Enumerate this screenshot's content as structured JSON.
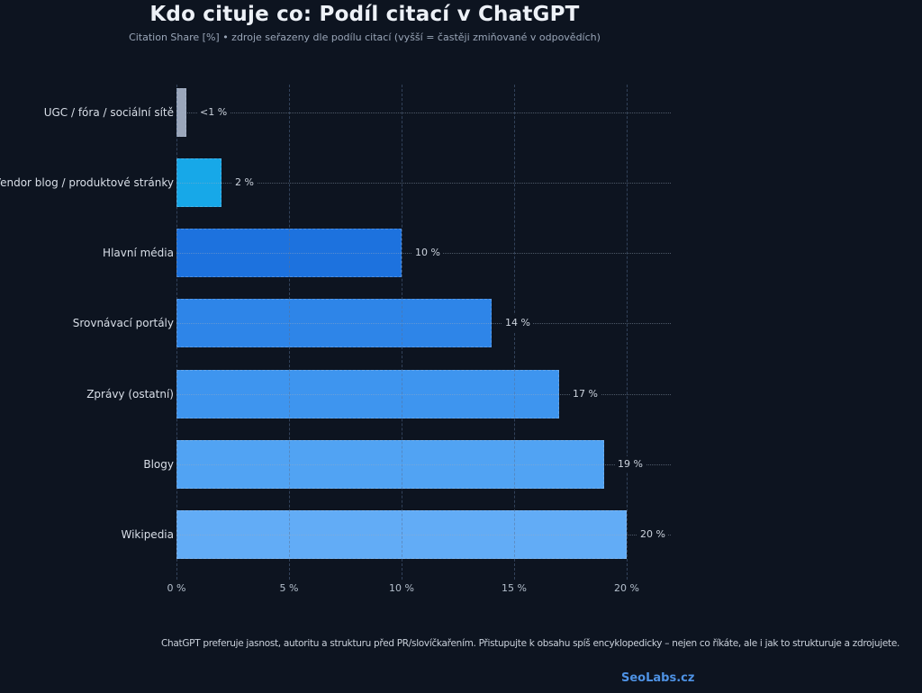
{
  "title": "Kdo cituje co: Podíl citací v ChatGPT",
  "subtitle": "Citation Share [%] • zdroje seřazeny dle podílu citací (vyšší = častěji zmiňované v odpovědích)",
  "footer": "ChatGPT preferuje jasnost, autoritu a strukturu před PR/slovíčkařením. Přistupujte k obsahu spíš encyklopedicky – nejen co říkáte, ale i jak to strukturuje a zdrojujete.",
  "brand": "SeoLabs.cz",
  "colors": {
    "background": "#0d1420",
    "title_text": "#edf1f7",
    "subtitle_text": "#9aa6b8",
    "category_text": "#d9dfe8",
    "value_text": "#ccd3dd",
    "tick_text": "#b4bfcc",
    "brand_text": "#4e92e4"
  },
  "chart_data": {
    "type": "bar",
    "orientation": "horizontal",
    "title": "Kdo cituje co: Podíl citací v ChatGPT",
    "subtitle": "Citation Share [%] • zdroje seřazeny dle podílu citací (vyšší = častěji zmiňované v odpovědích)",
    "xlabel": "Citation Share [%]",
    "ylabel": "",
    "xlim": [
      0,
      22
    ],
    "grid": "dashed vertical gridlines at ticks; dotted leader line per row",
    "legend": null,
    "categories": [
      "UGC / fóra / sociální sítě",
      "Vendor blog / produktové stránky",
      "Hlavní média",
      "Srovnávací portály",
      "Zprávy (ostatní)",
      "Blogy",
      "Wikipedia"
    ],
    "values": [
      0.45,
      2,
      10,
      14,
      17,
      19,
      20
    ],
    "value_labels": [
      "<1 %",
      "2 %",
      "10 %",
      "14 %",
      "17 %",
      "19 %",
      "20 %"
    ],
    "bar_colors": [
      "#9aa6ba",
      "#17a8e8",
      "#1d72de",
      "#2e85e8",
      "#3e95ef",
      "#51a3f3",
      "#62acf6"
    ],
    "tick_values": [
      0,
      5,
      10,
      15,
      20
    ],
    "tick_labels": [
      "0 %",
      "5 %",
      "10 %",
      "15 %",
      "20 %"
    ]
  }
}
